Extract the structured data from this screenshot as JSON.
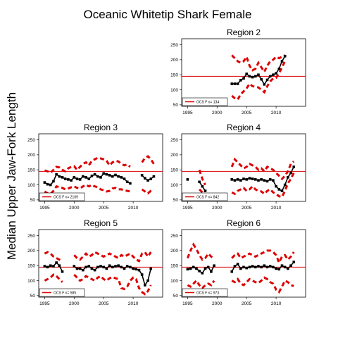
{
  "title": "Oceanic Whitetip Shark Female",
  "ylabel": "Median Upper Jaw-Fork Length",
  "colors": {
    "median": "#000000",
    "bounds": "#dd0000",
    "reference": "#dd0000"
  },
  "chart_data": {
    "type": "line",
    "shared": {
      "xlim": [
        1994,
        2015
      ],
      "ylim": [
        45,
        270
      ],
      "xticks": [
        1995,
        2000,
        2005,
        2010
      ],
      "yticks": [
        50,
        100,
        150,
        200,
        250
      ],
      "grid": false,
      "legend_position": "bottom-left"
    },
    "panels": [
      {
        "id": "region-2",
        "title": "Region 2",
        "legend": "OCS F n= 134",
        "reference": 145,
        "x": [
          2002.5,
          2003,
          2003.5,
          2004,
          2004.5,
          2005,
          2005.5,
          2006,
          2006.5,
          2007,
          2007.5,
          2008,
          2008.5,
          2009,
          2009.5,
          2010,
          2010.5,
          2011,
          2011.5
        ],
        "median": [
          120,
          120,
          120,
          132,
          138,
          153,
          145,
          142,
          145,
          150,
          135,
          118,
          133,
          145,
          150,
          155,
          170,
          195,
          212
        ],
        "upper": [
          215,
          205,
          195,
          190,
          195,
          210,
          180,
          165,
          170,
          190,
          175,
          160,
          180,
          195,
          200,
          210,
          205,
          210,
          215
        ],
        "lower": [
          80,
          72,
          68,
          85,
          95,
          105,
          120,
          112,
          110,
          108,
          100,
          92,
          112,
          128,
          138,
          140,
          155,
          175,
          195
        ]
      },
      {
        "id": "region-3",
        "title": "Region 3",
        "legend": "OCS F n= 2109",
        "reference": 145,
        "x": [
          1995,
          1995.5,
          1996,
          1996.5,
          1997,
          1997.5,
          1998,
          1998.5,
          1999,
          1999.5,
          2000,
          2000.5,
          2001,
          2001.5,
          2002,
          2002.5,
          2003,
          2003.5,
          2004,
          2004.5,
          2005,
          2005.5,
          2006,
          2006.5,
          2007,
          2007.5,
          2008,
          2008.5,
          2009,
          2009.5,
          null,
          2011.5,
          2012,
          2012.5,
          2013,
          2013.5
        ],
        "median": [
          108,
          102,
          100,
          112,
          135,
          128,
          125,
          120,
          118,
          115,
          125,
          120,
          118,
          128,
          125,
          120,
          130,
          135,
          128,
          125,
          138,
          135,
          132,
          128,
          133,
          128,
          125,
          120,
          110,
          105,
          null,
          132,
          122,
          115,
          120,
          128
        ],
        "upper": [
          148,
          145,
          140,
          150,
          160,
          158,
          150,
          145,
          155,
          160,
          162,
          150,
          160,
          170,
          175,
          165,
          180,
          185,
          190,
          188,
          185,
          180,
          165,
          175,
          180,
          178,
          170,
          165,
          168,
          160,
          null,
          175,
          190,
          195,
          185,
          170
        ],
        "lower": [
          78,
          72,
          70,
          80,
          95,
          92,
          90,
          85,
          88,
          92,
          95,
          90,
          88,
          95,
          100,
          95,
          100,
          95,
          92,
          85,
          82,
          78,
          80,
          88,
          90,
          85,
          85,
          82,
          80,
          78,
          null,
          85,
          78,
          72,
          80,
          85
        ]
      },
      {
        "id": "region-4",
        "title": "Region 4",
        "legend": "OCS F n= 842",
        "reference": 145,
        "x": [
          1995,
          null,
          1997,
          1997.5,
          1998,
          null,
          2002.5,
          2003,
          2003.5,
          2004,
          2004.5,
          2005,
          2005.5,
          2006,
          2006.5,
          2007,
          2007.5,
          2008,
          2008.5,
          2009,
          2009.5,
          2010,
          2010.5,
          2011,
          2011.5,
          2012,
          2012.5,
          2013
        ],
        "median": [
          118,
          null,
          110,
          95,
          80,
          null,
          118,
          115,
          118,
          115,
          120,
          118,
          122,
          120,
          118,
          115,
          118,
          115,
          112,
          118,
          115,
          95,
          85,
          80,
          100,
          125,
          140,
          160
        ],
        "upper": [
          null,
          null,
          150,
          120,
          100,
          null,
          160,
          185,
          175,
          165,
          155,
          160,
          170,
          165,
          160,
          150,
          155,
          145,
          160,
          155,
          150,
          140,
          130,
          120,
          130,
          145,
          170,
          178
        ],
        "lower": [
          null,
          null,
          85,
          75,
          60,
          null,
          75,
          70,
          80,
          85,
          90,
          80,
          85,
          95,
          85,
          80,
          78,
          70,
          80,
          85,
          75,
          70,
          62,
          60,
          80,
          105,
          120,
          140
        ]
      },
      {
        "id": "region-5",
        "title": "Region 5",
        "legend": "OCS F n= 585",
        "reference": 145,
        "x": [
          1995,
          1995.5,
          1996,
          1996.5,
          1997,
          1997.5,
          1998,
          null,
          2000,
          2000.5,
          2001,
          2001.5,
          2002,
          2002.5,
          2003,
          2003.5,
          2004,
          2004.5,
          2005,
          2005.5,
          2006,
          2006.5,
          2007,
          2007.5,
          2008,
          2008.5,
          2009,
          2009.5,
          2010,
          2010.5,
          2011,
          2011.5,
          2012,
          2012.5,
          2013
        ],
        "median": [
          148,
          145,
          150,
          148,
          160,
          150,
          130,
          null,
          148,
          140,
          140,
          135,
          145,
          148,
          140,
          135,
          145,
          148,
          145,
          140,
          150,
          145,
          148,
          150,
          145,
          140,
          148,
          145,
          140,
          138,
          135,
          120,
          85,
          100,
          140
        ],
        "upper": [
          190,
          195,
          190,
          180,
          175,
          170,
          165,
          null,
          185,
          175,
          170,
          180,
          190,
          180,
          185,
          195,
          190,
          185,
          180,
          185,
          190,
          185,
          180,
          175,
          185,
          180,
          185,
          190,
          180,
          170,
          165,
          190,
          195,
          180,
          195
        ],
        "lower": [
          100,
          105,
          110,
          120,
          115,
          105,
          95,
          null,
          120,
          110,
          100,
          105,
          115,
          110,
          105,
          100,
          110,
          115,
          105,
          100,
          108,
          112,
          108,
          105,
          75,
          72,
          80,
          100,
          110,
          105,
          75,
          62,
          55,
          65,
          85
        ]
      },
      {
        "id": "region-6",
        "title": "Region 6",
        "legend": "OCS F n= 973",
        "reference": 145,
        "x": [
          1995,
          1995.5,
          1996,
          1996.5,
          1997,
          1997.5,
          1998,
          1998.5,
          1999,
          1999.5,
          null,
          2002.5,
          2003,
          2003.5,
          2004,
          2004.5,
          2005,
          2005.5,
          2006,
          2006.5,
          2007,
          2007.5,
          2008,
          2008.5,
          2009,
          2009.5,
          2010,
          2010.5,
          2011,
          2011.5,
          2012,
          2012.5,
          2013
        ],
        "median": [
          138,
          140,
          145,
          140,
          132,
          125,
          140,
          145,
          130,
          150,
          null,
          130,
          148,
          155,
          140,
          145,
          142,
          145,
          148,
          145,
          148,
          145,
          150,
          145,
          148,
          145,
          140,
          138,
          150,
          145,
          140,
          150,
          162
        ],
        "upper": [
          175,
          200,
          220,
          205,
          185,
          170,
          175,
          190,
          180,
          175,
          null,
          175,
          185,
          190,
          175,
          180,
          185,
          190,
          185,
          180,
          185,
          190,
          195,
          200,
          200,
          195,
          185,
          160,
          180,
          185,
          170,
          180,
          195
        ],
        "lower": [
          85,
          80,
          90,
          100,
          85,
          75,
          85,
          90,
          85,
          100,
          null,
          100,
          95,
          105,
          90,
          85,
          95,
          105,
          100,
          95,
          92,
          100,
          110,
          105,
          95,
          90,
          70,
          62,
          80,
          100,
          95,
          85,
          82
        ]
      }
    ]
  }
}
